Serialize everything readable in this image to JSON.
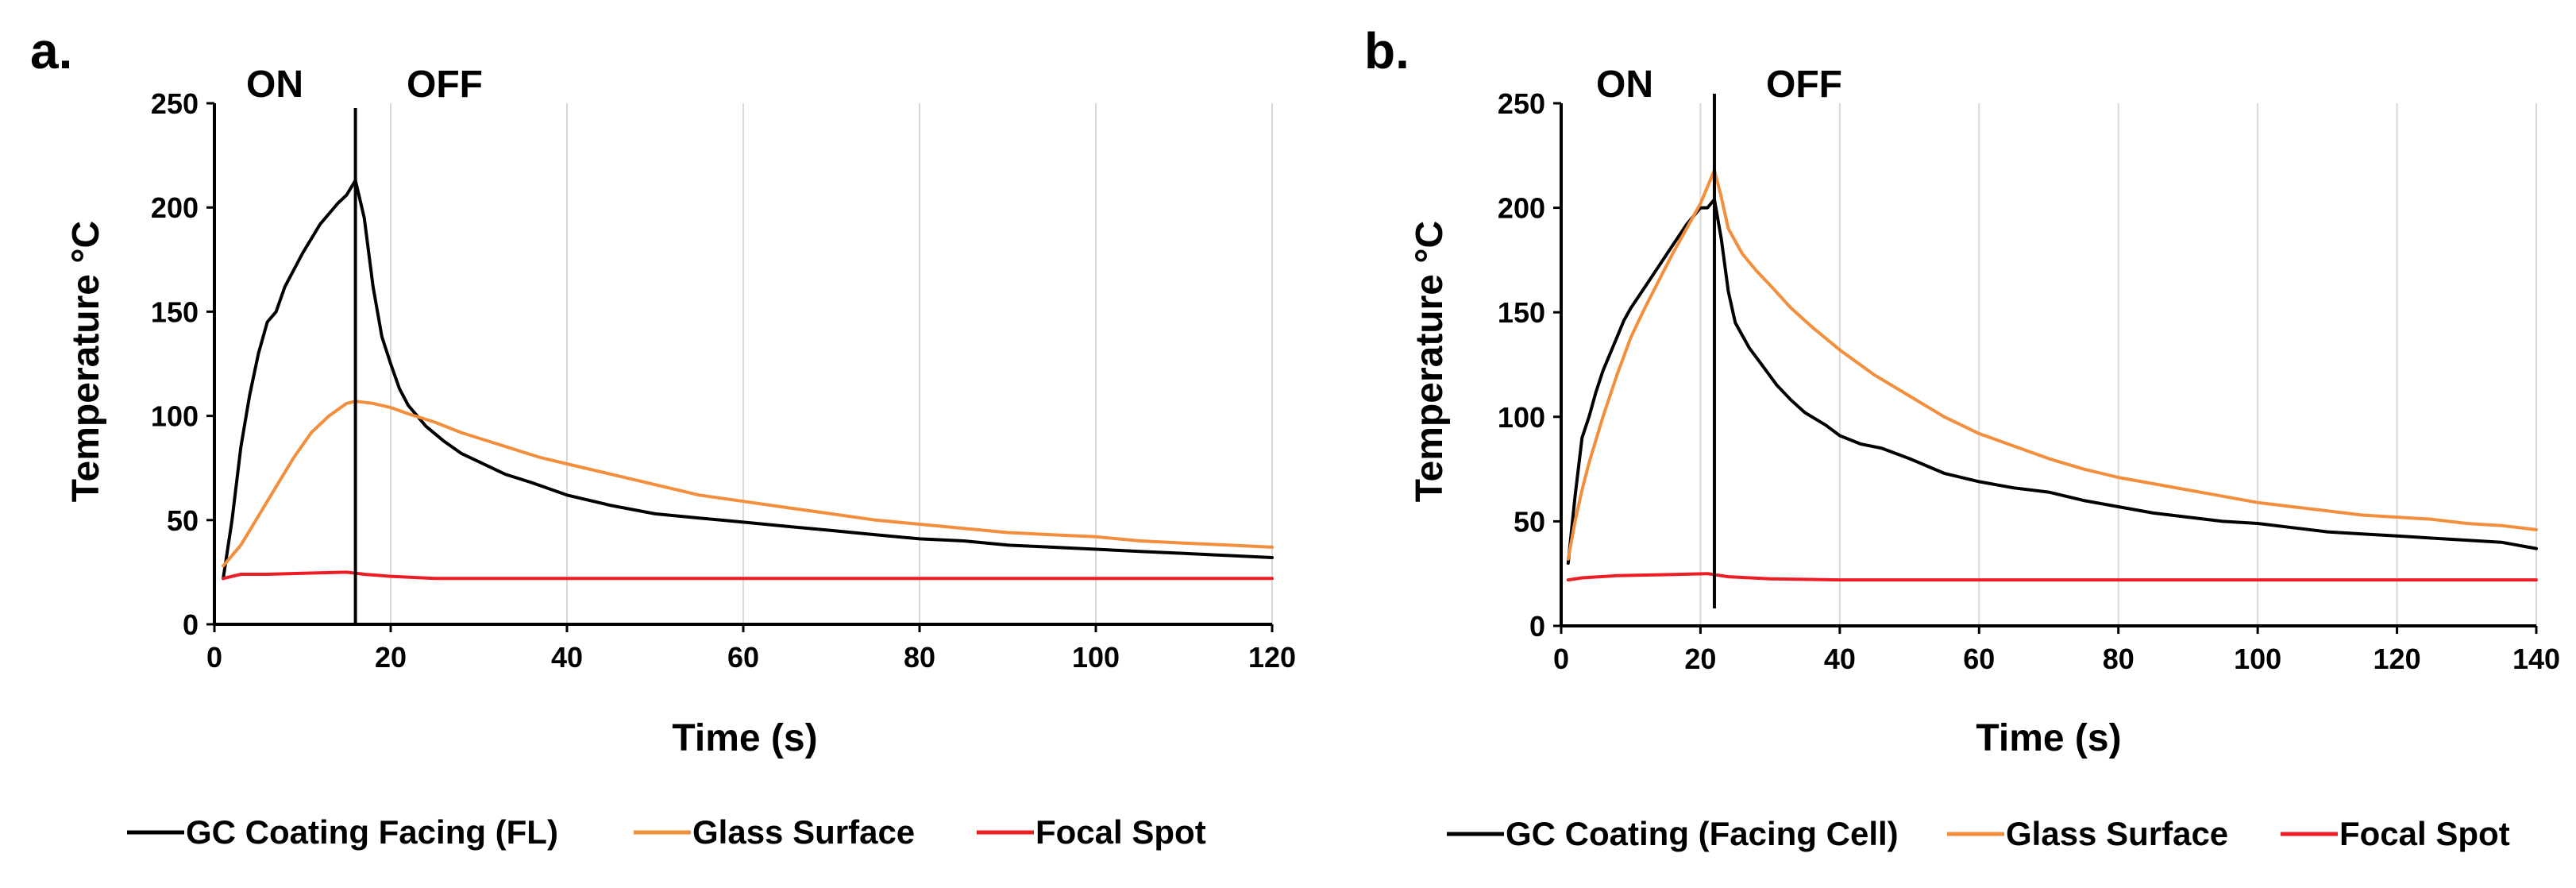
{
  "chart_data": [
    {
      "panel_label": "a.",
      "type": "line",
      "xlabel": "Time (s)",
      "ylabel": "Temperature °C",
      "xlim": [
        0,
        120
      ],
      "ylim": [
        0,
        250
      ],
      "xticks": [
        0,
        20,
        40,
        60,
        80,
        100,
        120
      ],
      "yticks": [
        0,
        50,
        100,
        150,
        200,
        250
      ],
      "grid": "vertical",
      "annotations": {
        "on": "ON",
        "off": "OFF",
        "switch_time": 16
      },
      "legend_position": "bottom",
      "series": [
        {
          "name": "GC Coating Facing (FL)",
          "color": "#000000",
          "points": [
            [
              1,
              22
            ],
            [
              2,
              50
            ],
            [
              3,
              85
            ],
            [
              4,
              110
            ],
            [
              5,
              130
            ],
            [
              6,
              145
            ],
            [
              7,
              150
            ],
            [
              8,
              162
            ],
            [
              10,
              178
            ],
            [
              12,
              192
            ],
            [
              14,
              202
            ],
            [
              15,
              206
            ],
            [
              16,
              213
            ],
            [
              17,
              195
            ],
            [
              18,
              162
            ],
            [
              19,
              138
            ],
            [
              20,
              125
            ],
            [
              21,
              113
            ],
            [
              22,
              105
            ],
            [
              24,
              95
            ],
            [
              26,
              88
            ],
            [
              28,
              82
            ],
            [
              30,
              78
            ],
            [
              33,
              72
            ],
            [
              36,
              68
            ],
            [
              40,
              62
            ],
            [
              45,
              57
            ],
            [
              50,
              53
            ],
            [
              55,
              51
            ],
            [
              60,
              49
            ],
            [
              65,
              47
            ],
            [
              70,
              45
            ],
            [
              75,
              43
            ],
            [
              80,
              41
            ],
            [
              85,
              40
            ],
            [
              90,
              38
            ],
            [
              95,
              37
            ],
            [
              100,
              36
            ],
            [
              105,
              35
            ],
            [
              110,
              34
            ],
            [
              115,
              33
            ],
            [
              120,
              32
            ]
          ]
        },
        {
          "name": "Glass Surface",
          "color": "#f28e3c",
          "points": [
            [
              1,
              28
            ],
            [
              3,
              38
            ],
            [
              5,
              52
            ],
            [
              7,
              66
            ],
            [
              9,
              80
            ],
            [
              11,
              92
            ],
            [
              13,
              100
            ],
            [
              15,
              106
            ],
            [
              16,
              107
            ],
            [
              18,
              106
            ],
            [
              20,
              104
            ],
            [
              22,
              101
            ],
            [
              25,
              97
            ],
            [
              28,
              92
            ],
            [
              31,
              88
            ],
            [
              34,
              84
            ],
            [
              37,
              80
            ],
            [
              40,
              77
            ],
            [
              45,
              72
            ],
            [
              50,
              67
            ],
            [
              55,
              62
            ],
            [
              60,
              59
            ],
            [
              65,
              56
            ],
            [
              70,
              53
            ],
            [
              75,
              50
            ],
            [
              80,
              48
            ],
            [
              85,
              46
            ],
            [
              90,
              44
            ],
            [
              95,
              43
            ],
            [
              100,
              42
            ],
            [
              105,
              40
            ],
            [
              110,
              39
            ],
            [
              115,
              38
            ],
            [
              120,
              37
            ]
          ]
        },
        {
          "name": "Focal Spot",
          "color": "#ee1c25",
          "points": [
            [
              1,
              22
            ],
            [
              3,
              24
            ],
            [
              6,
              24
            ],
            [
              10,
              24.5
            ],
            [
              15,
              25
            ],
            [
              17,
              24
            ],
            [
              20,
              23
            ],
            [
              25,
              22
            ],
            [
              40,
              22
            ],
            [
              60,
              22
            ],
            [
              80,
              22
            ],
            [
              100,
              22
            ],
            [
              120,
              22
            ]
          ]
        }
      ]
    },
    {
      "panel_label": "b.",
      "type": "line",
      "xlabel": "Time (s)",
      "ylabel": "Temperature °C",
      "xlim": [
        0,
        140
      ],
      "ylim": [
        0,
        250
      ],
      "xticks": [
        0,
        20,
        40,
        60,
        80,
        100,
        120,
        140
      ],
      "yticks": [
        0,
        50,
        100,
        150,
        200,
        250
      ],
      "grid": "vertical",
      "annotations": {
        "on": "ON",
        "off": "OFF",
        "switch_time": 22
      },
      "legend_position": "bottom",
      "series": [
        {
          "name": "GC Coating (Facing Cell)",
          "color": "#000000",
          "points": [
            [
              1,
              30
            ],
            [
              2,
              62
            ],
            [
              3,
              90
            ],
            [
              4,
              100
            ],
            [
              5,
              112
            ],
            [
              6,
              122
            ],
            [
              7,
              130
            ],
            [
              8,
              138
            ],
            [
              9,
              146
            ],
            [
              10,
              152
            ],
            [
              12,
              162
            ],
            [
              14,
              172
            ],
            [
              16,
              182
            ],
            [
              18,
              192
            ],
            [
              20,
              200
            ],
            [
              21,
              200
            ],
            [
              22,
              204
            ],
            [
              23,
              185
            ],
            [
              24,
              160
            ],
            [
              25,
              145
            ],
            [
              27,
              133
            ],
            [
              29,
              124
            ],
            [
              31,
              115
            ],
            [
              33,
              108
            ],
            [
              35,
              102
            ],
            [
              38,
              96
            ],
            [
              40,
              91
            ],
            [
              43,
              87
            ],
            [
              46,
              85
            ],
            [
              50,
              80
            ],
            [
              55,
              73
            ],
            [
              60,
              69
            ],
            [
              65,
              66
            ],
            [
              70,
              64
            ],
            [
              75,
              60
            ],
            [
              80,
              57
            ],
            [
              85,
              54
            ],
            [
              90,
              52
            ],
            [
              95,
              50
            ],
            [
              100,
              49
            ],
            [
              105,
              47
            ],
            [
              110,
              45
            ],
            [
              115,
              44
            ],
            [
              120,
              43
            ],
            [
              125,
              42
            ],
            [
              130,
              41
            ],
            [
              135,
              40
            ],
            [
              140,
              37
            ]
          ]
        },
        {
          "name": "Glass Surface",
          "color": "#f28e3c",
          "points": [
            [
              1,
              32
            ],
            [
              2,
              50
            ],
            [
              3,
              65
            ],
            [
              4,
              78
            ],
            [
              6,
              100
            ],
            [
              8,
              120
            ],
            [
              10,
              138
            ],
            [
              12,
              152
            ],
            [
              14,
              165
            ],
            [
              16,
              178
            ],
            [
              18,
              190
            ],
            [
              20,
              202
            ],
            [
              21,
              210
            ],
            [
              22,
              218
            ],
            [
              23,
              205
            ],
            [
              24,
              190
            ],
            [
              26,
              178
            ],
            [
              28,
              170
            ],
            [
              30,
              163
            ],
            [
              33,
              152
            ],
            [
              36,
              143
            ],
            [
              40,
              132
            ],
            [
              45,
              120
            ],
            [
              50,
              110
            ],
            [
              55,
              100
            ],
            [
              60,
              92
            ],
            [
              65,
              86
            ],
            [
              70,
              80
            ],
            [
              75,
              75
            ],
            [
              80,
              71
            ],
            [
              85,
              68
            ],
            [
              90,
              65
            ],
            [
              95,
              62
            ],
            [
              100,
              59
            ],
            [
              105,
              57
            ],
            [
              110,
              55
            ],
            [
              115,
              53
            ],
            [
              120,
              52
            ],
            [
              125,
              51
            ],
            [
              130,
              49
            ],
            [
              135,
              48
            ],
            [
              140,
              46
            ]
          ]
        },
        {
          "name": "Focal Spot",
          "color": "#ee1c25",
          "points": [
            [
              1,
              22
            ],
            [
              3,
              23
            ],
            [
              8,
              24
            ],
            [
              15,
              24.5
            ],
            [
              21,
              25
            ],
            [
              24,
              23.5
            ],
            [
              30,
              22.5
            ],
            [
              40,
              22
            ],
            [
              60,
              22
            ],
            [
              80,
              22
            ],
            [
              100,
              22
            ],
            [
              120,
              22
            ],
            [
              140,
              22
            ]
          ]
        }
      ]
    }
  ]
}
